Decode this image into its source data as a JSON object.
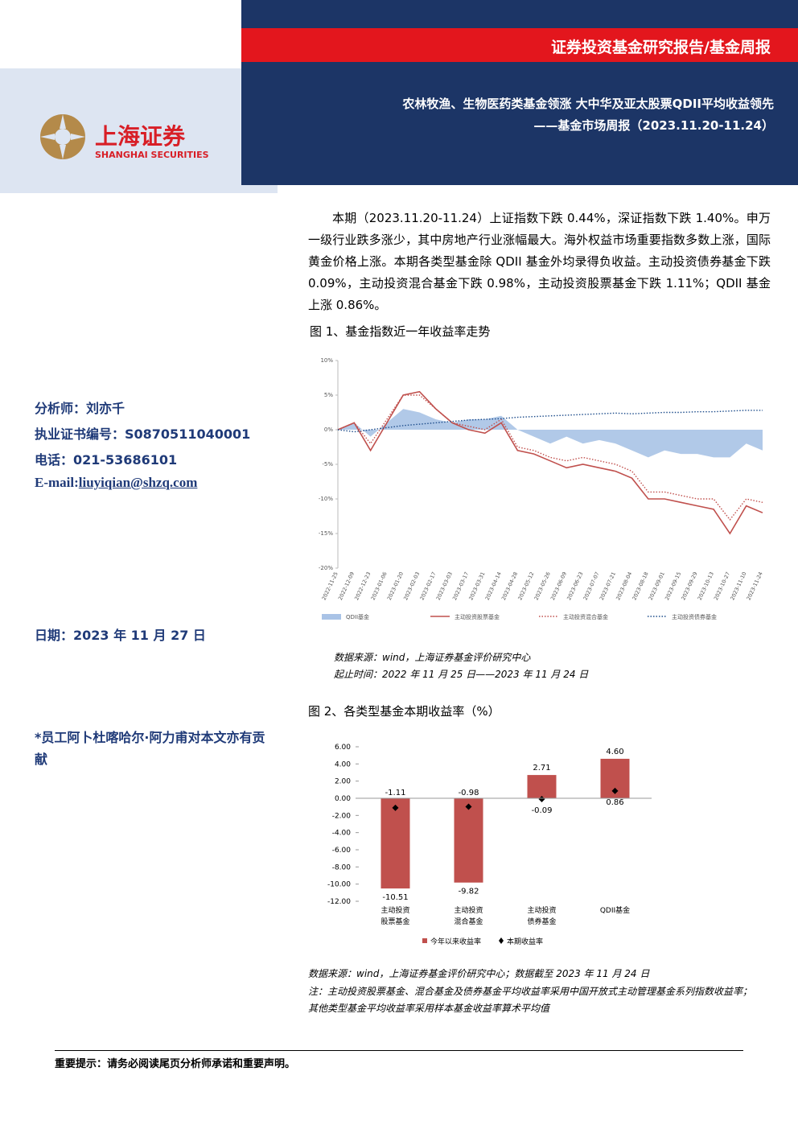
{
  "header": {
    "report_type": "证券投资基金研究报告/基金周报",
    "title": "农林牧渔、生物医药类基金领涨 大中华及亚太股票QDII平均收益领先",
    "subtitle": "——基金市场周报（2023.11.20-11.24）"
  },
  "logo": {
    "name_cn": "上海证券",
    "name_en": "SHANGHAI SECURITIES"
  },
  "summary": "本期（2023.11.20-11.24）上证指数下跌 0.44%，深证指数下跌 1.40%。申万一级行业跌多涨少，其中房地产行业涨幅最大。海外权益市场重要指数多数上涨，国际黄金价格上涨。本期各类型基金除 QDII 基金外均录得负收益。主动投资债券基金下跌 0.09%，主动投资混合基金下跌 0.98%，主动投资股票基金下跌 1.11%；QDII 基金上涨 0.86%。",
  "sidebar": {
    "analyst": "分析师：刘亦千",
    "cert": "执业证书编号：S0870511040001",
    "phone": "电话：021-53686101",
    "email_label": "E-mail:",
    "email": "liuyiqian@shzq.com",
    "date": "日期：2023 年 11 月 27 日",
    "contrib": "*员工阿卜杜喀哈尔·阿力甫对本文亦有贡献"
  },
  "figure1": {
    "caption": "图 1、基金指数近一年收益率走势",
    "source": "数据来源：wind，上海证券基金评价研究中心",
    "period": "起止时间：2022 年 11 月 25 日——2023 年 11 月 24 日",
    "chart_data": {
      "type": "line",
      "categories": [
        "2022-11-25",
        "2022-12-09",
        "2022-12-23",
        "2023-01-06",
        "2023-01-20",
        "2023-02-03",
        "2023-02-17",
        "2023-03-03",
        "2023-03-17",
        "2023-03-31",
        "2023-04-14",
        "2023-04-28",
        "2023-05-12",
        "2023-05-26",
        "2023-06-09",
        "2023-06-23",
        "2023-07-07",
        "2023-07-21",
        "2023-08-04",
        "2023-08-18",
        "2023-09-01",
        "2023-09-15",
        "2023-09-29",
        "2023-10-13",
        "2023-10-27",
        "2023-11-10",
        "2023-11-24"
      ],
      "series": [
        {
          "name": "QDII基金",
          "color": "#a9c3e6",
          "style": "area",
          "values": [
            0,
            1,
            -1,
            1,
            3,
            2.5,
            1.5,
            1,
            1.5,
            1.5,
            2,
            0,
            -1,
            -2,
            -1,
            -2,
            -1.5,
            -2,
            -3,
            -4,
            -3,
            -3.5,
            -3.5,
            -4,
            -4,
            -2,
            -3
          ]
        },
        {
          "name": "主动投资股票基金",
          "color": "#c0504d",
          "style": "solid",
          "values": [
            0,
            1,
            -3,
            1,
            5,
            5.5,
            3,
            1,
            0,
            -0.5,
            1,
            -3,
            -3.5,
            -4.5,
            -5.5,
            -5,
            -5.5,
            -6,
            -7,
            -10,
            -10,
            -10.5,
            -11,
            -11.5,
            -15,
            -11,
            -12
          ]
        },
        {
          "name": "主动投资混合基金",
          "color": "#c0504d",
          "style": "dotted",
          "values": [
            0,
            1,
            -2,
            1.5,
            5,
            5,
            3,
            1,
            0.5,
            0,
            1.5,
            -2.5,
            -3,
            -4,
            -4.5,
            -4,
            -4.5,
            -5,
            -6,
            -9,
            -9,
            -9.5,
            -10,
            -10,
            -13,
            -10,
            -10.5
          ]
        },
        {
          "name": "主动投资债券基金",
          "color": "#1f4e8c",
          "style": "dotted",
          "values": [
            0,
            -0.3,
            0,
            0.3,
            0.6,
            0.8,
            1,
            1.2,
            1.4,
            1.5,
            1.6,
            1.8,
            1.9,
            2,
            2.1,
            2.2,
            2.3,
            2.4,
            2.3,
            2.4,
            2.5,
            2.5,
            2.6,
            2.6,
            2.7,
            2.8,
            2.8
          ]
        }
      ],
      "ylim": [
        -20,
        10
      ],
      "yticks": [
        {
          "value": 10,
          "label": "10%"
        },
        {
          "value": 5,
          "label": "5%"
        },
        {
          "value": 0,
          "label": "0%"
        },
        {
          "value": -5,
          "label": "-5%"
        },
        {
          "value": -10,
          "label": "-10%"
        },
        {
          "value": -15,
          "label": "-15%"
        },
        {
          "value": -20,
          "label": "-20%"
        }
      ]
    }
  },
  "figure2": {
    "caption": "图 2、各类型基金本期收益率（%）",
    "source": "数据来源：wind，上海证券基金评价研究中心；数据截至 2023 年 11 月 24 日",
    "note": "注：主动投资股票基金、混合基金及债券基金平均收益率采用中国开放式主动管理基金系列指数收益率；其他类型基金平均收益率采用样本基金收益率算术平均值",
    "chart_data": {
      "type": "bar",
      "categories": [
        "主动投资股票基金",
        "主动投资混合基金",
        "主动投资债券基金",
        "QDII基金"
      ],
      "series": [
        {
          "name": "今年以来收益率",
          "color": "#c0504d",
          "type": "bar",
          "values": [
            -10.51,
            -9.82,
            2.71,
            4.6
          ],
          "value_labels": [
            "-10.51",
            "-9.82",
            "2.71",
            "4.60"
          ]
        },
        {
          "name": "本期收益率",
          "color": "#000000",
          "type": "scatter",
          "values": [
            -1.11,
            -0.98,
            -0.09,
            0.86
          ]
        }
      ],
      "ylim": [
        -12,
        6
      ],
      "yticks": [
        {
          "value": 6,
          "label": "6.00"
        },
        {
          "value": 4,
          "label": "4.00"
        },
        {
          "value": 2,
          "label": "2.00"
        },
        {
          "value": 0,
          "label": "0.00"
        },
        {
          "value": -2,
          "label": "-2.00"
        },
        {
          "value": -4,
          "label": "-4.00"
        },
        {
          "value": -6,
          "label": "-6.00"
        },
        {
          "value": -8,
          "label": "-8.00"
        },
        {
          "value": -10,
          "label": "-10.00"
        },
        {
          "value": -12,
          "label": "-12.00"
        }
      ]
    }
  },
  "footer": "重要提示：请务必阅读尾页分析师承诺和重要声明。"
}
